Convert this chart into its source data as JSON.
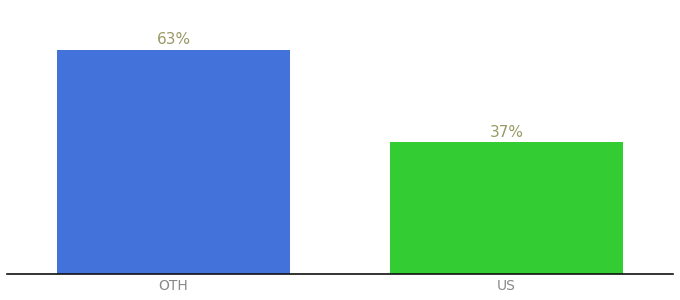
{
  "categories": [
    "OTH",
    "US"
  ],
  "values": [
    63,
    37
  ],
  "bar_colors": [
    "#4472db",
    "#33cc33"
  ],
  "label_texts": [
    "63%",
    "37%"
  ],
  "label_color": "#999966",
  "ylim": [
    0,
    75
  ],
  "background_color": "#ffffff",
  "bar_width": 0.7,
  "label_fontsize": 11,
  "tick_fontsize": 10,
  "tick_color": "#888888",
  "spine_color": "#111111"
}
